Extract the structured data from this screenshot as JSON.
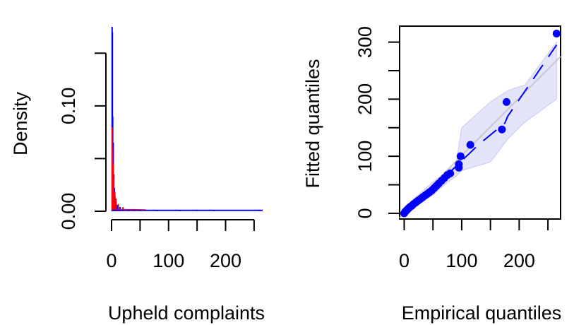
{
  "chart_data": [
    {
      "type": "histogram",
      "title": "",
      "xlabel": "Upheld complaints",
      "ylabel": "Density",
      "x_ticks": [
        "0",
        "100",
        "200"
      ],
      "x_tick_values": [
        0,
        50,
        100,
        150,
        200,
        250
      ],
      "xlim": [
        0,
        265
      ],
      "y_ticks": [
        "0.00",
        "0.10"
      ],
      "y_tick_values": [
        0.0,
        0.05,
        0.1,
        0.15
      ],
      "ylim": [
        0,
        0.175
      ],
      "grid": false,
      "series": [
        {
          "color": "#0000ff",
          "x": [
            1,
            2,
            3,
            4,
            5,
            6,
            7,
            8,
            10,
            12,
            15,
            20,
            30,
            50,
            80,
            120,
            180,
            260
          ],
          "values": [
            0.175,
            0.09,
            0.065,
            0.035,
            0.022,
            0.014,
            0.01,
            0.008,
            0.006,
            0.005,
            0.004,
            0.003,
            0.002,
            0.0015,
            0.001,
            0.001,
            0.0008,
            0.0008
          ]
        },
        {
          "color": "#ff0000",
          "x": [
            1,
            2,
            3,
            4,
            6,
            8,
            12,
            20,
            40,
            80,
            150,
            260
          ],
          "values": [
            0.08,
            0.06,
            0.045,
            0.03,
            0.018,
            0.012,
            0.007,
            0.004,
            0.002,
            0.001,
            0.0006,
            0.0003
          ]
        }
      ]
    },
    {
      "type": "scatter",
      "title": "",
      "xlabel": "Empirical quantiles",
      "ylabel": "Fitted quantiles",
      "x_ticks": [
        "0",
        "100",
        "200"
      ],
      "x_tick_values": [
        0,
        50,
        100,
        150,
        200,
        250
      ],
      "xlim": [
        -8,
        272
      ],
      "y_ticks": [
        "0",
        "100",
        "200",
        "300"
      ],
      "y_tick_values": [
        0,
        50,
        100,
        150,
        200,
        250,
        300
      ],
      "ylim": [
        -10,
        328
      ],
      "grid": false,
      "points": [
        [
          0,
          0
        ],
        [
          2,
          3
        ],
        [
          4,
          5
        ],
        [
          6,
          7
        ],
        [
          8,
          9
        ],
        [
          10,
          11
        ],
        [
          13,
          13
        ],
        [
          16,
          16
        ],
        [
          20,
          19
        ],
        [
          24,
          22
        ],
        [
          28,
          25
        ],
        [
          32,
          28
        ],
        [
          36,
          31
        ],
        [
          40,
          34
        ],
        [
          44,
          37
        ],
        [
          48,
          40
        ],
        [
          52,
          44
        ],
        [
          56,
          48
        ],
        [
          60,
          52
        ],
        [
          65,
          57
        ],
        [
          70,
          62
        ],
        [
          75,
          67
        ],
        [
          80,
          70
        ],
        [
          95,
          80
        ],
        [
          95,
          86
        ],
        [
          98,
          100
        ],
        [
          115,
          120
        ],
        [
          170,
          147
        ],
        [
          178,
          195
        ],
        [
          265,
          315
        ]
      ],
      "fit_line": [
        [
          0,
          0
        ],
        [
          15,
          15
        ],
        [
          40,
          37
        ],
        [
          70,
          63
        ],
        [
          100,
          92
        ],
        [
          130,
          121
        ],
        [
          175,
          158
        ],
        [
          180,
          170
        ],
        [
          265,
          295
        ]
      ],
      "reference_line": [
        [
          -8,
          -8
        ],
        [
          272,
          275
        ]
      ],
      "band_upper": [
        [
          0,
          10
        ],
        [
          20,
          28
        ],
        [
          50,
          55
        ],
        [
          70,
          70
        ],
        [
          90,
          85
        ],
        [
          100,
          150
        ],
        [
          150,
          195
        ],
        [
          180,
          215
        ],
        [
          210,
          225
        ],
        [
          265,
          300
        ]
      ],
      "band_lower": [
        [
          0,
          0
        ],
        [
          20,
          15
        ],
        [
          50,
          32
        ],
        [
          70,
          50
        ],
        [
          90,
          65
        ],
        [
          100,
          75
        ],
        [
          150,
          90
        ],
        [
          180,
          130
        ],
        [
          210,
          160
        ],
        [
          265,
          200
        ]
      ],
      "colors": {
        "points": "#0000ff",
        "fit": "#0000ff",
        "band": "#d8d8f8",
        "reference": "#c8c8c8"
      }
    }
  ]
}
